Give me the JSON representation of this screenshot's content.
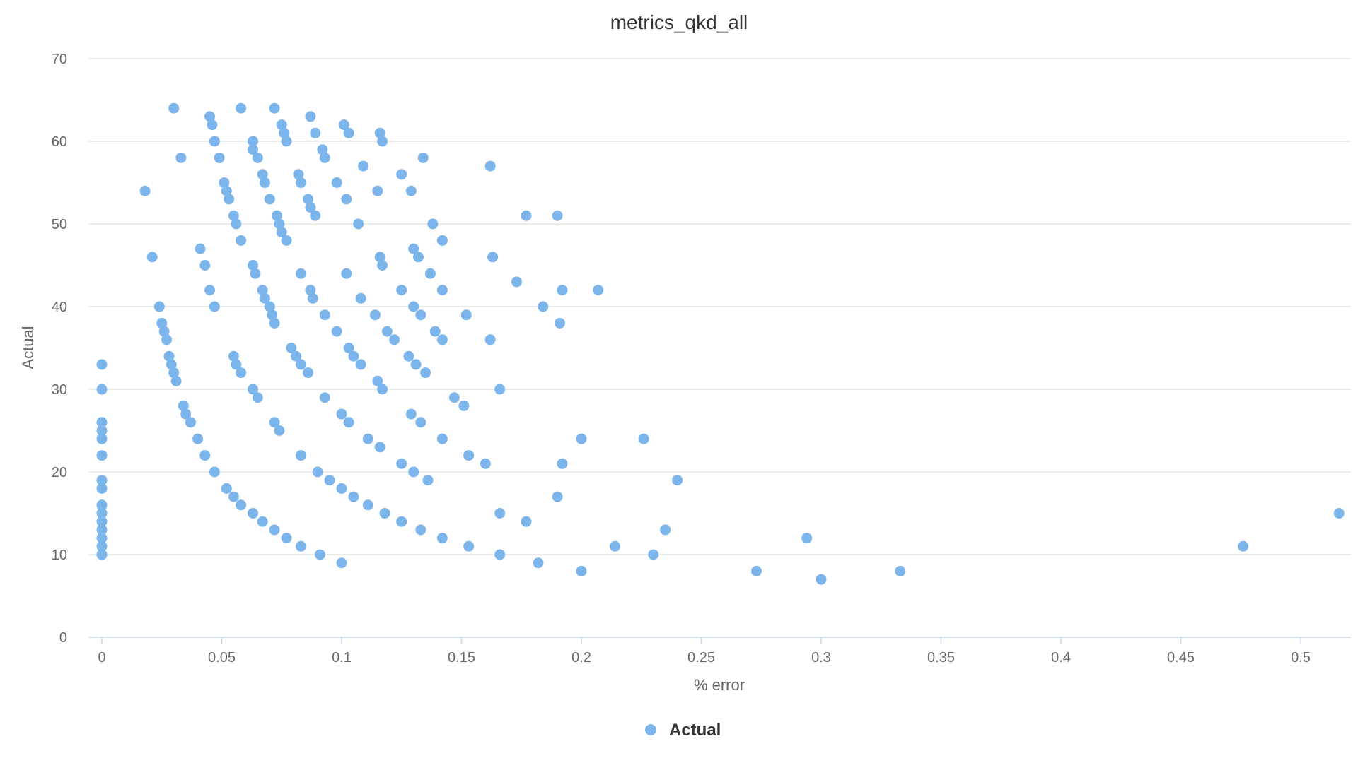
{
  "chart_data": {
    "type": "scatter",
    "title": "metrics_qkd_all",
    "xlabel": "% error",
    "ylabel": "Actual",
    "xlim": [
      -0.005,
      0.52
    ],
    "ylim": [
      0,
      70
    ],
    "x_ticks": [
      0,
      0.05,
      0.1,
      0.15,
      0.2,
      0.25,
      0.3,
      0.35,
      0.4,
      0.45,
      0.5
    ],
    "x_tick_labels": [
      "0",
      "0.05",
      "0.1",
      "0.15",
      "0.2",
      "0.25",
      "0.3",
      "0.35",
      "0.4",
      "0.45",
      "0.5"
    ],
    "y_ticks": [
      0,
      10,
      20,
      30,
      40,
      50,
      60,
      70
    ],
    "y_tick_labels": [
      "0",
      "10",
      "20",
      "30",
      "40",
      "50",
      "60",
      "70"
    ],
    "grid": true,
    "legend_position": "bottom-center",
    "colors": {
      "series": "#7cb5ec"
    },
    "series": [
      {
        "name": "Actual",
        "points": [
          [
            0,
            10
          ],
          [
            0,
            10
          ],
          [
            0,
            11
          ],
          [
            0,
            12
          ],
          [
            0,
            13
          ],
          [
            0,
            14
          ],
          [
            0,
            15
          ],
          [
            0,
            16
          ],
          [
            0,
            18
          ],
          [
            0,
            19
          ],
          [
            0,
            22
          ],
          [
            0,
            24
          ],
          [
            0,
            25
          ],
          [
            0,
            26
          ],
          [
            0,
            30
          ],
          [
            0,
            33
          ],
          [
            0.018,
            54
          ],
          [
            0.021,
            46
          ],
          [
            0.024,
            40
          ],
          [
            0.025,
            38
          ],
          [
            0.026,
            37
          ],
          [
            0.027,
            36
          ],
          [
            0.028,
            34
          ],
          [
            0.029,
            33
          ],
          [
            0.03,
            32
          ],
          [
            0.03,
            64
          ],
          [
            0.031,
            31
          ],
          [
            0.033,
            58
          ],
          [
            0.034,
            28
          ],
          [
            0.035,
            27
          ],
          [
            0.037,
            26
          ],
          [
            0.04,
            24
          ],
          [
            0.041,
            47
          ],
          [
            0.043,
            22
          ],
          [
            0.043,
            45
          ],
          [
            0.045,
            42
          ],
          [
            0.045,
            63
          ],
          [
            0.046,
            62
          ],
          [
            0.047,
            60
          ],
          [
            0.047,
            40
          ],
          [
            0.047,
            20
          ],
          [
            0.049,
            58
          ],
          [
            0.051,
            55
          ],
          [
            0.052,
            54
          ],
          [
            0.053,
            53
          ],
          [
            0.052,
            18
          ],
          [
            0.055,
            17
          ],
          [
            0.055,
            51
          ],
          [
            0.055,
            34
          ],
          [
            0.056,
            50
          ],
          [
            0.056,
            33
          ],
          [
            0.058,
            64
          ],
          [
            0.058,
            48
          ],
          [
            0.058,
            32
          ],
          [
            0.058,
            16
          ],
          [
            0.063,
            60
          ],
          [
            0.063,
            59
          ],
          [
            0.063,
            45
          ],
          [
            0.063,
            30
          ],
          [
            0.063,
            15
          ],
          [
            0.064,
            44
          ],
          [
            0.065,
            58
          ],
          [
            0.065,
            29
          ],
          [
            0.067,
            56
          ],
          [
            0.067,
            42
          ],
          [
            0.067,
            14
          ],
          [
            0.068,
            55
          ],
          [
            0.068,
            41
          ],
          [
            0.07,
            53
          ],
          [
            0.07,
            40
          ],
          [
            0.071,
            39
          ],
          [
            0.072,
            38
          ],
          [
            0.072,
            64
          ],
          [
            0.072,
            26
          ],
          [
            0.072,
            13
          ],
          [
            0.073,
            51
          ],
          [
            0.074,
            50
          ],
          [
            0.074,
            25
          ],
          [
            0.075,
            62
          ],
          [
            0.075,
            49
          ],
          [
            0.076,
            61
          ],
          [
            0.077,
            60
          ],
          [
            0.077,
            48
          ],
          [
            0.077,
            12
          ],
          [
            0.079,
            35
          ],
          [
            0.081,
            34
          ],
          [
            0.082,
            56
          ],
          [
            0.083,
            55
          ],
          [
            0.083,
            44
          ],
          [
            0.083,
            33
          ],
          [
            0.083,
            22
          ],
          [
            0.083,
            11
          ],
          [
            0.086,
            53
          ],
          [
            0.086,
            32
          ],
          [
            0.087,
            63
          ],
          [
            0.087,
            52
          ],
          [
            0.087,
            42
          ],
          [
            0.088,
            41
          ],
          [
            0.089,
            61
          ],
          [
            0.089,
            51
          ],
          [
            0.09,
            20
          ],
          [
            0.091,
            10
          ],
          [
            0.092,
            59
          ],
          [
            0.093,
            58
          ],
          [
            0.093,
            39
          ],
          [
            0.093,
            29
          ],
          [
            0.095,
            19
          ],
          [
            0.098,
            55
          ],
          [
            0.098,
            37
          ],
          [
            0.1,
            27
          ],
          [
            0.1,
            18
          ],
          [
            0.1,
            9
          ],
          [
            0.101,
            62
          ],
          [
            0.102,
            53
          ],
          [
            0.102,
            44
          ],
          [
            0.103,
            61
          ],
          [
            0.103,
            35
          ],
          [
            0.103,
            26
          ],
          [
            0.105,
            34
          ],
          [
            0.105,
            17
          ],
          [
            0.107,
            50
          ],
          [
            0.108,
            41
          ],
          [
            0.108,
            33
          ],
          [
            0.109,
            57
          ],
          [
            0.111,
            24
          ],
          [
            0.111,
            16
          ],
          [
            0.114,
            39
          ],
          [
            0.115,
            54
          ],
          [
            0.115,
            31
          ],
          [
            0.116,
            61
          ],
          [
            0.116,
            46
          ],
          [
            0.116,
            23
          ],
          [
            0.117,
            60
          ],
          [
            0.117,
            45
          ],
          [
            0.117,
            30
          ],
          [
            0.118,
            15
          ],
          [
            0.119,
            37
          ],
          [
            0.122,
            36
          ],
          [
            0.125,
            56
          ],
          [
            0.125,
            42
          ],
          [
            0.125,
            21
          ],
          [
            0.125,
            14
          ],
          [
            0.128,
            34
          ],
          [
            0.129,
            54
          ],
          [
            0.129,
            27
          ],
          [
            0.13,
            47
          ],
          [
            0.13,
            40
          ],
          [
            0.13,
            20
          ],
          [
            0.131,
            33
          ],
          [
            0.132,
            46
          ],
          [
            0.133,
            39
          ],
          [
            0.133,
            26
          ],
          [
            0.133,
            13
          ],
          [
            0.134,
            58
          ],
          [
            0.135,
            32
          ],
          [
            0.136,
            19
          ],
          [
            0.137,
            44
          ],
          [
            0.138,
            50
          ],
          [
            0.139,
            37
          ],
          [
            0.142,
            48
          ],
          [
            0.142,
            42
          ],
          [
            0.142,
            36
          ],
          [
            0.142,
            24
          ],
          [
            0.142,
            12
          ],
          [
            0.147,
            29
          ],
          [
            0.151,
            28
          ],
          [
            0.152,
            39
          ],
          [
            0.153,
            22
          ],
          [
            0.153,
            11
          ],
          [
            0.16,
            21
          ],
          [
            0.162,
            57
          ],
          [
            0.162,
            36
          ],
          [
            0.163,
            46
          ],
          [
            0.166,
            30
          ],
          [
            0.166,
            15
          ],
          [
            0.166,
            10
          ],
          [
            0.173,
            43
          ],
          [
            0.177,
            51
          ],
          [
            0.177,
            14
          ],
          [
            0.182,
            9
          ],
          [
            0.184,
            40
          ],
          [
            0.19,
            51
          ],
          [
            0.19,
            17
          ],
          [
            0.191,
            38
          ],
          [
            0.192,
            42
          ],
          [
            0.192,
            21
          ],
          [
            0.2,
            24
          ],
          [
            0.2,
            8
          ],
          [
            0.207,
            42
          ],
          [
            0.214,
            11
          ],
          [
            0.226,
            24
          ],
          [
            0.23,
            10
          ],
          [
            0.235,
            13
          ],
          [
            0.24,
            19
          ],
          [
            0.273,
            8
          ],
          [
            0.294,
            12
          ],
          [
            0.3,
            7
          ],
          [
            0.333,
            8
          ],
          [
            0.476,
            11
          ],
          [
            0.516,
            15
          ]
        ]
      }
    ]
  }
}
